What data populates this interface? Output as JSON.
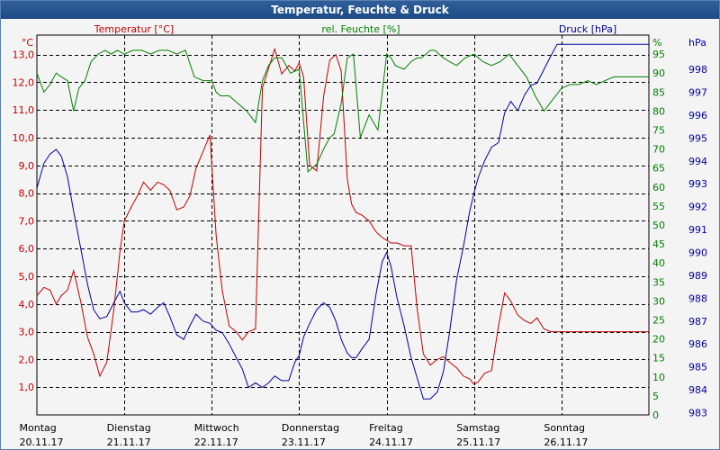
{
  "window": {
    "title": "Temperatur, Feuchte & Druck"
  },
  "colors": {
    "temperature": "#c00000",
    "humidity": "#008000",
    "pressure": "#0000a0",
    "grid": "#000000",
    "title_bg": "#1f4e8c"
  },
  "chart_data": {
    "type": "line",
    "title": "Temperatur, Feuchte & Druck",
    "x_range": [
      0,
      7
    ],
    "x_labels": [
      {
        "day": "Montag",
        "date": "20.11.17"
      },
      {
        "day": "Dienstag",
        "date": "21.11.17"
      },
      {
        "day": "Mittwoch",
        "date": "22.11.17"
      },
      {
        "day": "Donnerstag",
        "date": "23.11.17"
      },
      {
        "day": "Freitag",
        "date": "24.11.17"
      },
      {
        "day": "Samstag",
        "date": "25.11.17"
      },
      {
        "day": "Sonntag",
        "date": "26.11.17"
      }
    ],
    "axes": {
      "left": {
        "label": "Temperatur [°C]",
        "unit": "°C",
        "range": [
          0.0,
          13.7
        ],
        "ticks": [
          1.0,
          2.0,
          3.0,
          4.0,
          5.0,
          6.0,
          7.0,
          8.0,
          9.0,
          10.0,
          11.0,
          12.0,
          13.0
        ],
        "tick_labels": [
          "1,0",
          "2,0",
          "3,0",
          "4,0",
          "5,0",
          "6,0",
          "7,0",
          "8,0",
          "9,0",
          "10,0",
          "11,0",
          "12,0",
          "13,0"
        ]
      },
      "mid": {
        "label": "rel. Feuchte [%]",
        "unit": "%",
        "range": [
          0,
          100
        ],
        "ticks": [
          0,
          5,
          10,
          15,
          20,
          25,
          30,
          35,
          40,
          45,
          50,
          55,
          60,
          65,
          70,
          75,
          80,
          85,
          90,
          95
        ],
        "tick_labels": [
          "0",
          "5",
          "10",
          "15",
          "20",
          "25",
          "30",
          "35",
          "40",
          "45",
          "50",
          "55",
          "60",
          "65",
          "70",
          "75",
          "80",
          "85",
          "90",
          "95"
        ]
      },
      "right": {
        "label": "Druck [hPa]",
        "unit": "hPa",
        "range": [
          982.9,
          999.5
        ],
        "ticks": [
          983,
          984,
          985,
          986,
          987,
          988,
          989,
          990,
          991,
          992,
          993,
          994,
          995,
          996,
          997,
          998
        ],
        "tick_labels": [
          "983",
          "984",
          "985",
          "986",
          "987",
          "988",
          "989",
          "990",
          "991",
          "992",
          "993",
          "994",
          "995",
          "996",
          "997",
          "998"
        ]
      }
    },
    "series": [
      {
        "name": "Temperatur [°C]",
        "axis": "left",
        "color": "#c00000",
        "x": [
          0.0,
          0.08,
          0.15,
          0.22,
          0.28,
          0.35,
          0.42,
          0.5,
          0.58,
          0.65,
          0.72,
          0.8,
          0.88,
          0.95,
          1.0,
          1.08,
          1.15,
          1.22,
          1.3,
          1.38,
          1.45,
          1.52,
          1.6,
          1.68,
          1.75,
          1.82,
          1.9,
          1.98,
          2.05,
          2.12,
          2.2,
          2.28,
          2.35,
          2.42,
          2.5,
          2.58,
          2.65,
          2.72,
          2.8,
          2.88,
          2.95,
          3.0,
          3.05,
          3.12,
          3.2,
          3.28,
          3.35,
          3.42,
          3.48,
          3.55,
          3.6,
          3.65,
          3.72,
          3.8,
          3.88,
          3.95,
          4.0,
          4.05,
          4.12,
          4.2,
          4.28,
          4.35,
          4.42,
          4.5,
          4.58,
          4.65,
          4.72,
          4.8,
          4.88,
          4.95,
          5.0,
          5.05,
          5.12,
          5.2,
          5.28,
          5.35,
          5.42,
          5.5,
          5.58,
          5.65,
          5.72,
          5.8,
          5.88,
          5.95,
          6.0,
          6.05,
          6.12,
          6.2,
          6.28,
          6.35,
          6.42,
          6.5,
          6.58,
          6.65,
          6.72,
          6.8,
          6.88,
          6.95,
          7.0
        ],
        "values": [
          4.3,
          4.6,
          4.5,
          4.0,
          4.3,
          4.5,
          5.2,
          4.1,
          2.8,
          2.2,
          1.4,
          1.9,
          3.8,
          5.9,
          7.0,
          7.5,
          7.9,
          8.4,
          8.1,
          8.4,
          8.3,
          8.1,
          7.4,
          7.5,
          7.9,
          8.9,
          9.5,
          10.1,
          6.5,
          4.5,
          3.2,
          3.0,
          2.7,
          3.0,
          3.1,
          11.8,
          12.5,
          13.2,
          12.3,
          12.6,
          12.4,
          12.7,
          12.2,
          9.0,
          8.8,
          11.5,
          12.8,
          13.0,
          12.4,
          8.5,
          7.6,
          7.3,
          7.2,
          7.0,
          6.6,
          6.4,
          6.3,
          6.2,
          6.2,
          6.1,
          6.1,
          3.8,
          2.2,
          1.8,
          2.0,
          2.1,
          1.9,
          1.7,
          1.4,
          1.3,
          1.1,
          1.2,
          1.5,
          1.6,
          3.2,
          4.4,
          4.1,
          3.6,
          3.4,
          3.3,
          3.5,
          3.1,
          3.0,
          3.0,
          3.0,
          3.0,
          3.0,
          3.0,
          3.0,
          3.0,
          3.0,
          3.0,
          3.0,
          3.0,
          3.0,
          3.0,
          3.0,
          3.0,
          3.0
        ]
      },
      {
        "name": "rel. Feuchte [%]",
        "axis": "mid",
        "color": "#008000",
        "x": [
          0.0,
          0.08,
          0.15,
          0.22,
          0.28,
          0.35,
          0.42,
          0.48,
          0.55,
          0.62,
          0.7,
          0.78,
          0.85,
          0.92,
          1.0,
          1.1,
          1.2,
          1.3,
          1.4,
          1.5,
          1.6,
          1.7,
          1.8,
          1.9,
          2.0,
          2.05,
          2.1,
          2.2,
          2.3,
          2.4,
          2.5,
          2.58,
          2.65,
          2.72,
          2.8,
          2.9,
          3.0,
          3.1,
          3.2,
          3.28,
          3.35,
          3.4,
          3.48,
          3.55,
          3.62,
          3.7,
          3.8,
          3.9,
          4.0,
          4.05,
          4.1,
          4.2,
          4.28,
          4.35,
          4.4,
          4.45,
          4.5,
          4.55,
          4.6,
          4.65,
          4.72,
          4.8,
          4.9,
          5.0,
          5.1,
          5.2,
          5.3,
          5.4,
          5.5,
          5.6,
          5.7,
          5.8,
          5.9,
          6.0,
          6.1,
          6.2,
          6.3,
          6.4,
          6.5,
          6.6,
          6.7,
          6.78,
          6.85,
          6.92,
          7.0
        ],
        "values": [
          90,
          85,
          87,
          90,
          89,
          88,
          80,
          86,
          88,
          93,
          95,
          96,
          95,
          96,
          95,
          96,
          96,
          95,
          96,
          96,
          95,
          96,
          89,
          88,
          88,
          85,
          84,
          84,
          82,
          80,
          77,
          88,
          92,
          94,
          94,
          90,
          91,
          64,
          66,
          70,
          73,
          74,
          82,
          94,
          95,
          73,
          79,
          75,
          95,
          94,
          92,
          91,
          93,
          94,
          94,
          95,
          96,
          96,
          95,
          94,
          93,
          92,
          94,
          95,
          93,
          92,
          93,
          95,
          92,
          89,
          84,
          80,
          83,
          86,
          87,
          87,
          88,
          87,
          88,
          89,
          89,
          89,
          89,
          89,
          89
        ]
      },
      {
        "name": "Druck [hPa]",
        "axis": "right",
        "color": "#0000a0",
        "x": [
          0.0,
          0.08,
          0.15,
          0.22,
          0.28,
          0.35,
          0.42,
          0.5,
          0.58,
          0.65,
          0.72,
          0.8,
          0.88,
          0.95,
          1.0,
          1.08,
          1.15,
          1.22,
          1.3,
          1.38,
          1.45,
          1.52,
          1.6,
          1.68,
          1.75,
          1.82,
          1.9,
          1.98,
          2.05,
          2.12,
          2.2,
          2.28,
          2.35,
          2.42,
          2.5,
          2.58,
          2.65,
          2.72,
          2.8,
          2.88,
          2.95,
          3.0,
          3.05,
          3.12,
          3.2,
          3.28,
          3.35,
          3.42,
          3.48,
          3.55,
          3.6,
          3.65,
          3.72,
          3.8,
          3.88,
          3.95,
          4.0,
          4.05,
          4.12,
          4.2,
          4.28,
          4.35,
          4.42,
          4.5,
          4.58,
          4.65,
          4.72,
          4.8,
          4.88,
          4.95,
          5.0,
          5.05,
          5.12,
          5.2,
          5.28,
          5.35,
          5.42,
          5.5,
          5.58,
          5.65,
          5.72,
          5.8,
          5.88,
          5.95,
          6.0,
          6.05,
          6.12,
          6.2,
          6.28,
          6.35,
          6.42,
          6.5,
          6.58,
          6.65,
          6.72,
          6.8,
          6.88,
          6.95,
          7.0
        ],
        "values": [
          992.8,
          993.9,
          994.3,
          994.5,
          994.2,
          993.3,
          991.8,
          990.2,
          988.6,
          987.5,
          987.1,
          987.2,
          987.8,
          988.3,
          987.8,
          987.4,
          987.4,
          987.5,
          987.3,
          987.6,
          987.8,
          987.2,
          986.4,
          986.2,
          986.8,
          987.3,
          987.0,
          986.9,
          986.6,
          986.5,
          986.0,
          985.4,
          984.9,
          984.1,
          984.3,
          984.1,
          984.3,
          984.6,
          984.4,
          984.4,
          985.2,
          985.5,
          986.3,
          986.9,
          987.5,
          987.8,
          987.6,
          987.0,
          986.2,
          985.6,
          985.4,
          985.4,
          985.8,
          986.2,
          988.2,
          989.6,
          990.0,
          989.4,
          988.0,
          986.8,
          985.4,
          984.5,
          983.6,
          983.6,
          983.9,
          984.8,
          986.5,
          988.8,
          990.3,
          991.8,
          992.6,
          993.3,
          994.0,
          994.6,
          994.8,
          996.1,
          996.6,
          996.2,
          996.9,
          997.3,
          997.4,
          998.0,
          998.6,
          999.1,
          999.1,
          999.1,
          999.1,
          999.1,
          999.1,
          999.1,
          999.1,
          999.1,
          999.1,
          999.1,
          999.1,
          999.1,
          999.1,
          999.1,
          999.1
        ]
      }
    ]
  }
}
